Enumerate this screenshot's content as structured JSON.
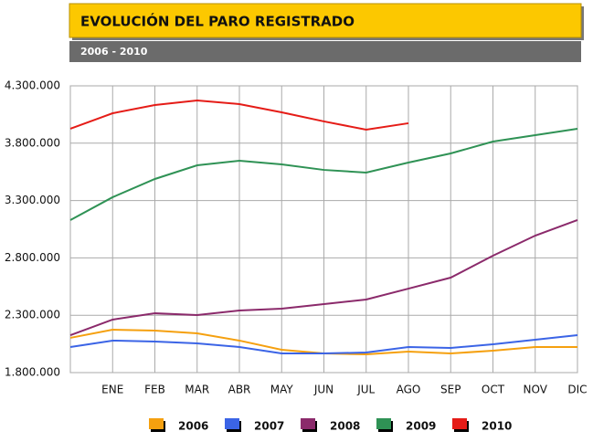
{
  "chart_data": {
    "type": "line",
    "title": "EVOLUCIÓN DEL PARO REGISTRADO",
    "subtitle": "2006 - 2010",
    "categories": [
      null,
      "ENE",
      "FEB",
      "MAR",
      "ABR",
      "MAY",
      "JUN",
      "JUL",
      "AGO",
      "SEP",
      "OCT",
      "NOV",
      "DIC"
    ],
    "ylim": [
      1800000,
      4300000
    ],
    "yticks": [
      {
        "value": 1800000,
        "label": "1.800.000"
      },
      {
        "value": 2300000,
        "label": "2.300.000"
      },
      {
        "value": 2800000,
        "label": "2.800.000"
      },
      {
        "value": 3300000,
        "label": "3.300.000"
      },
      {
        "value": 3800000,
        "label": "3.800.000"
      },
      {
        "value": 4300000,
        "label": "4.300.000"
      }
    ],
    "grid": true,
    "legend": "bottom",
    "series": [
      {
        "name": "2006",
        "color": "#f5a00f",
        "values": [
          2103000,
          2174000,
          2166000,
          2142000,
          2079000,
          1999000,
          1967000,
          1959000,
          1983000,
          1967000,
          1991000,
          2023000,
          2023000
        ]
      },
      {
        "name": "2007",
        "color": "#3b64e6",
        "values": [
          2023000,
          2079000,
          2071000,
          2055000,
          2023000,
          1967000,
          1967000,
          1975000,
          2023000,
          2015000,
          2047000,
          2087000,
          2126000
        ]
      },
      {
        "name": "2008",
        "color": "#8b2a6b",
        "values": [
          2126000,
          2262000,
          2317000,
          2302000,
          2341000,
          2357000,
          2397000,
          2437000,
          2532000,
          2628000,
          2819000,
          2994000,
          3130000
        ]
      },
      {
        "name": "2009",
        "color": "#2f9255",
        "values": [
          3130000,
          3329000,
          3488000,
          3607000,
          3647000,
          3615000,
          3567000,
          3544000,
          3631000,
          3711000,
          3814000,
          3870000,
          3926000
        ]
      },
      {
        "name": "2010",
        "color": "#e51c17",
        "values": [
          3926000,
          4061000,
          4133000,
          4173000,
          4141000,
          4069000,
          3990000,
          3918000,
          3974000,
          null,
          null,
          null,
          null
        ]
      }
    ]
  }
}
